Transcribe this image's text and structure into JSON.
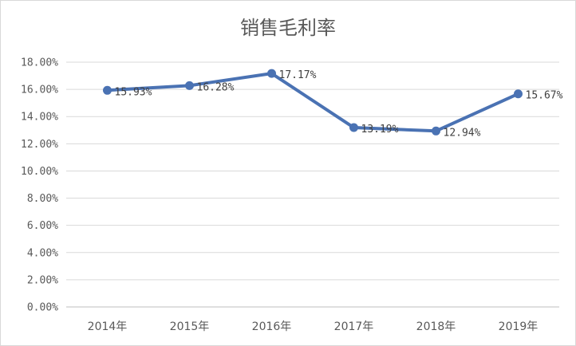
{
  "chart_data": {
    "type": "line",
    "title": "销售毛利率",
    "categories": [
      "2014年",
      "2015年",
      "2016年",
      "2017年",
      "2018年",
      "2019年"
    ],
    "series": [
      {
        "values": [
          15.93,
          16.28,
          17.17,
          13.19,
          12.94,
          15.67
        ],
        "labels": [
          "15.93%",
          "16.28%",
          "17.17%",
          "13.19%",
          "12.94%",
          "15.67%"
        ],
        "color": "#4a72b3"
      }
    ],
    "y_ticks": [
      "0.00%",
      "2.00%",
      "4.00%",
      "6.00%",
      "8.00%",
      "10.00%",
      "12.00%",
      "14.00%",
      "16.00%",
      "18.00%"
    ],
    "ylim": [
      0,
      18
    ],
    "grid": "horizontal",
    "legend": "none",
    "gridline_color": "#d9d9d9",
    "axis_color": "#bfbfbf"
  }
}
